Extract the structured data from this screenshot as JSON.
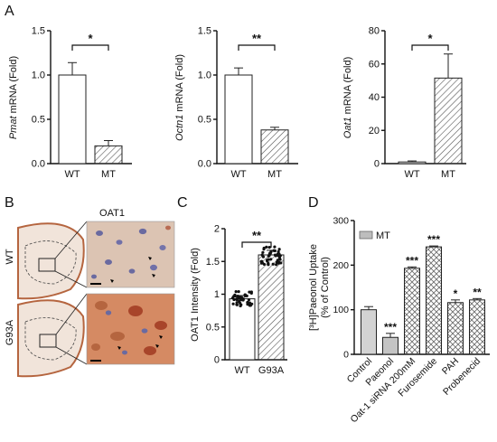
{
  "panels": {
    "A": "A",
    "B": "B",
    "C": "C",
    "D": "D"
  },
  "colors": {
    "wt_fill": "#ffffff",
    "mt_hatch": "#555555",
    "tissue_bg": "#d7b9a3",
    "stain_brown": "#b5653f",
    "stain_dark": "#a8452a",
    "nuclei": "#6a6aa0",
    "legend_mt": "#bdbdbd",
    "crosshatch": "#6e6e6e"
  },
  "histology": {
    "title": "OAT1",
    "row_labels": [
      "WT",
      "G93A"
    ]
  },
  "chart_data": [
    {
      "type": "bar",
      "panel": "A",
      "categories": [
        "WT",
        "MT"
      ],
      "values": [
        1.0,
        0.2
      ],
      "errors": [
        0.14,
        0.06
      ],
      "ylabel_italic": "Pmat",
      "ylabel_rest": " mRNA (Fold)",
      "ylim": [
        0,
        1.5
      ],
      "yticks": [
        "0.0",
        "0.5",
        "1.0",
        "1.5"
      ],
      "significance": "*",
      "grid": false
    },
    {
      "type": "bar",
      "panel": "A",
      "categories": [
        "WT",
        "MT"
      ],
      "values": [
        1.0,
        0.38
      ],
      "errors": [
        0.08,
        0.03
      ],
      "ylabel_italic": "Octn1",
      "ylabel_rest": " mRNA (Fold)",
      "ylim": [
        0,
        1.5
      ],
      "yticks": [
        "0.0",
        "0.5",
        "1.0",
        "1.5"
      ],
      "significance": "**",
      "grid": false
    },
    {
      "type": "bar",
      "panel": "A",
      "categories": [
        "WT",
        "MT"
      ],
      "values": [
        1.0,
        51.5
      ],
      "errors": [
        0.6,
        14.5
      ],
      "ylabel_italic": "Oat1",
      "ylabel_rest": " mRNA (Fold)",
      "ylim": [
        0,
        80
      ],
      "yticks": [
        "0",
        "20",
        "40",
        "60",
        "80"
      ],
      "significance": "*",
      "grid": false
    },
    {
      "type": "bar",
      "panel": "C",
      "categories": [
        "WT",
        "G93A"
      ],
      "values": [
        0.93,
        1.6
      ],
      "errors": [
        0.05,
        0.07
      ],
      "ylabel": "OAT1 Intensity (Fold)",
      "ylim": [
        0,
        2
      ],
      "yticks": [
        "0",
        "0.5",
        "1",
        "1.5",
        "2"
      ],
      "significance": "**",
      "grid": false
    },
    {
      "type": "bar",
      "panel": "D",
      "categories": [
        "Control",
        "Paeonol",
        "Oat-1 siRNA 200mM",
        "Furosemide",
        "PAH",
        "Probenecid"
      ],
      "values": [
        100,
        38,
        193,
        241,
        116,
        122
      ],
      "errors": [
        7,
        9,
        3,
        2,
        6,
        3
      ],
      "significance": [
        "",
        "***",
        "***",
        "***",
        "*",
        "**"
      ],
      "ylabel_line1": "[³H]Paeonol Uptake",
      "ylabel_line2": "(% of Control)",
      "ylim": [
        0,
        300
      ],
      "yticks": [
        "0",
        "100",
        "200",
        "300"
      ],
      "legend": "MT",
      "legend_position": "top-left",
      "grid": false
    }
  ]
}
